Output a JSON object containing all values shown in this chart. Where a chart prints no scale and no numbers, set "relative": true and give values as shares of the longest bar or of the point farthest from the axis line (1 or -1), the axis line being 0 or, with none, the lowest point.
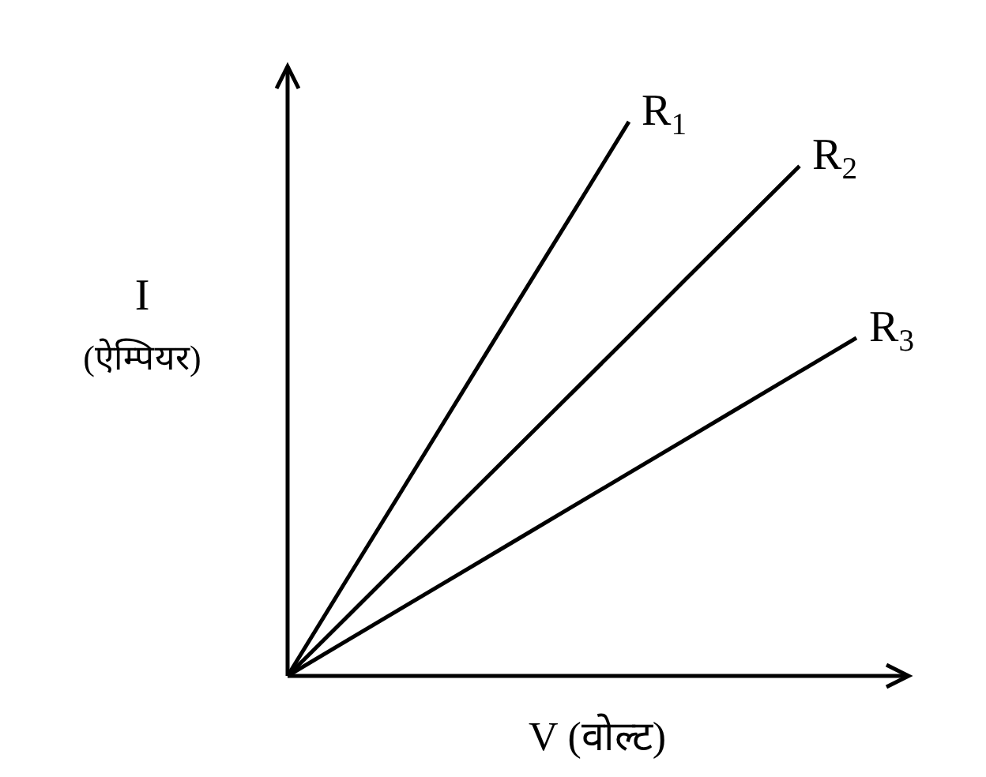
{
  "chart_data": {
    "type": "line",
    "relative": true,
    "xlabel": "V (वोल्ट)",
    "ylabel": "I (ऐम्पियर)",
    "categories": [
      null,
      null,
      null,
      null,
      null,
      null,
      null,
      null,
      null,
      null,
      null
    ],
    "series": [
      {
        "name": "R$_{1}$",
        "color": "#000000",
        "values": [
          0,
          0.167,
          0.333,
          0.5,
          0.667,
          0.833,
          1,
          null,
          null,
          null,
          null
        ]
      },
      {
        "name": "R$_{2}$",
        "color": "#000000",
        "values": [
          0,
          0.102,
          0.204,
          0.307,
          0.409,
          0.511,
          0.613,
          0.716,
          0.818,
          0.92,
          null
        ]
      },
      {
        "name": "R$_{3}$",
        "color": "#000000",
        "values": [
          0,
          0.061,
          0.122,
          0.183,
          0.244,
          0.305,
          0.366,
          0.427,
          0.488,
          0.549,
          0.61
        ]
      }
    ]
  }
}
